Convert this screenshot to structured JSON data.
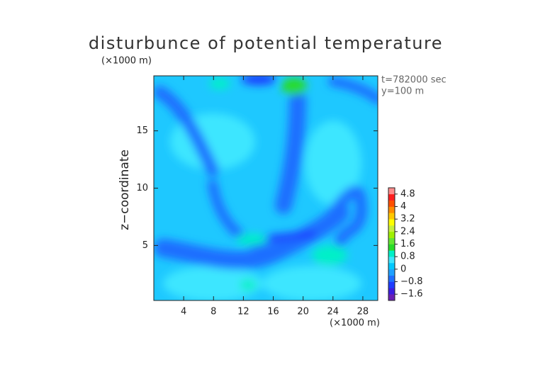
{
  "chart_data": {
    "type": "contour",
    "title": "disturbunce of potential temperature",
    "ylabel": "z−coordinate",
    "xunit": "(×1000 m)",
    "yunit": "(×1000 m)",
    "annotations": [
      "t=782000 sec",
      "y=100 m"
    ],
    "xlim": [
      0,
      30
    ],
    "xticks": [
      4,
      8,
      12,
      16,
      20,
      24,
      28
    ],
    "ylim": [
      0.2,
      19.8
    ],
    "yticks": [
      5,
      10,
      15
    ],
    "clim": [
      -2,
      5.2
    ],
    "cticks": [
      {
        "value": -1.6,
        "label": "−1.6"
      },
      {
        "value": -0.8,
        "label": "−0.8"
      },
      0,
      0.8,
      1.6,
      2.4,
      3.2,
      4,
      4.8
    ],
    "colors": [
      "#6a1fb5",
      "#3c1ee0",
      "#1e3cff",
      "#1e6eff",
      "#1ea0ff",
      "#00c8ff",
      "#3ce6ff",
      "#00f0c8",
      "#28dc28",
      "#64e632",
      "#a0f000",
      "#c8f03c",
      "#ffff00",
      "#ffc800",
      "#ff8c00",
      "#ff5000",
      "#ff1e1e",
      "#ff8c8c"
    ]
  }
}
